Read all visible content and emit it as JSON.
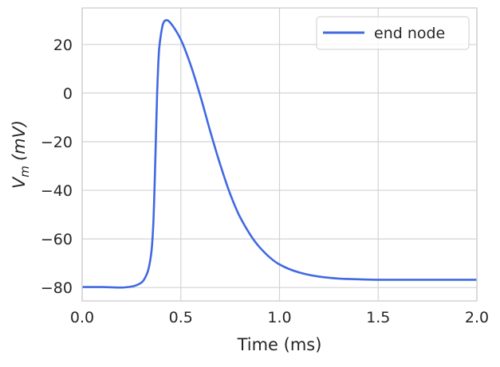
{
  "chart_data": {
    "type": "line",
    "title": "",
    "xlabel": "Time (ms)",
    "ylabel": {
      "base": "V",
      "subscript": "m",
      "unit": "(mV)"
    },
    "xlim": [
      0.0,
      2.0
    ],
    "ylim": [
      -85.5,
      35.0
    ],
    "xticks": [
      0.0,
      0.5,
      1.0,
      1.5,
      2.0
    ],
    "xtick_labels": [
      "0.0",
      "0.5",
      "1.0",
      "1.5",
      "2.0"
    ],
    "yticks": [
      -80,
      -60,
      -40,
      -20,
      0,
      20
    ],
    "ytick_labels": [
      "−80",
      "−60",
      "−40",
      "−20",
      "0",
      "20"
    ],
    "grid": true,
    "legend": "top-right",
    "colors": {
      "line": "#4169e1",
      "grid": "#d3d3d3",
      "spine": "#cccccc",
      "text": "#262626"
    },
    "series": [
      {
        "name": "end node",
        "x": [
          0.0,
          0.1,
          0.2,
          0.25,
          0.3,
          0.33,
          0.35,
          0.36,
          0.37,
          0.38,
          0.39,
          0.4,
          0.41,
          0.42,
          0.43,
          0.44,
          0.46,
          0.5,
          0.55,
          0.6,
          0.65,
          0.7,
          0.75,
          0.8,
          0.9,
          1.0,
          1.1,
          1.2,
          1.3,
          1.4,
          1.5,
          1.6,
          1.8,
          2.0
        ],
        "y": [
          -79.8,
          -79.8,
          -80.0,
          -79.6,
          -78.0,
          -74.0,
          -66.0,
          -55.0,
          -30.0,
          0.0,
          18.0,
          24.5,
          28.5,
          29.8,
          30.0,
          29.5,
          27.5,
          22.0,
          11.5,
          -1.5,
          -16.0,
          -29.5,
          -41.5,
          -51.0,
          -63.5,
          -70.5,
          -73.8,
          -75.5,
          -76.3,
          -76.6,
          -76.8,
          -76.8,
          -76.8,
          -76.8
        ]
      }
    ]
  }
}
